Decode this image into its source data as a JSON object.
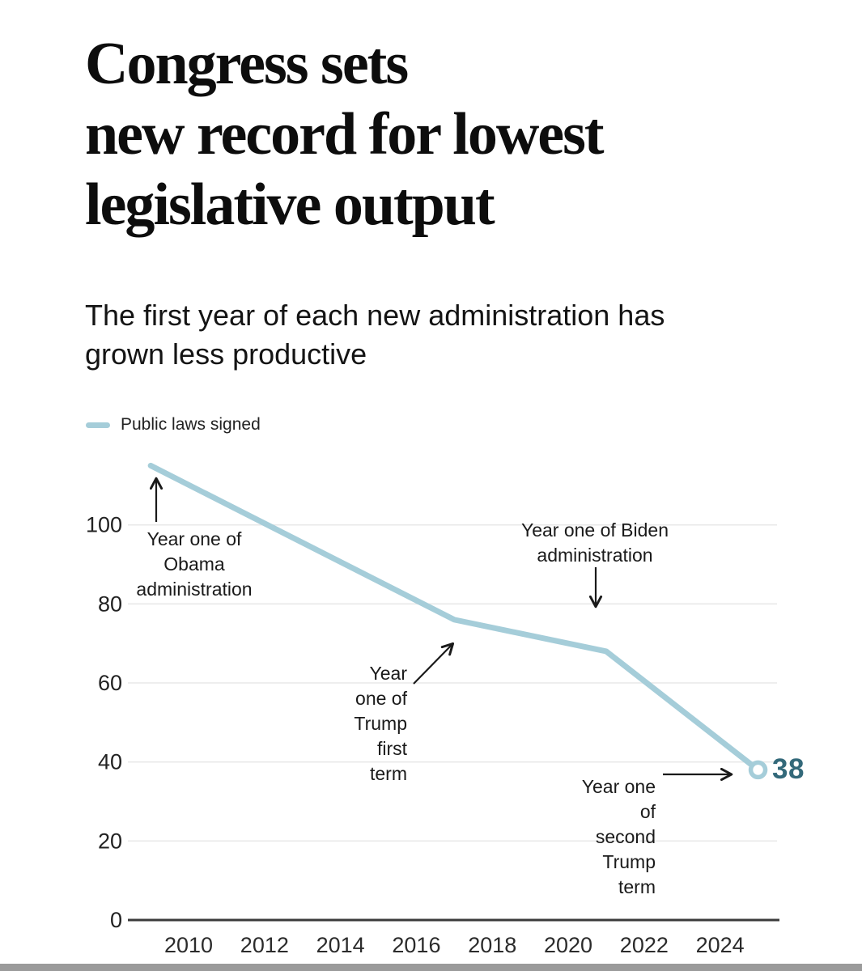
{
  "header": {
    "title": "Congress sets\nnew record for lowest\nlegislative output",
    "subtitle": "The first year of each new administration has grown less productive"
  },
  "legend": {
    "label": "Public laws signed",
    "swatch_color": "#a5cdd9"
  },
  "colors": {
    "line": "#a5cdd9",
    "end_label": "#33697a",
    "grid": "#e9e9e9",
    "zero_axis": "#3b3b3b",
    "annotation_text": "#1a1a1a",
    "bottom_bar": "#9b9b9b"
  },
  "chart_data": {
    "type": "line",
    "series": [
      {
        "name": "Public laws signed",
        "color": "#a5cdd9",
        "x": [
          2009,
          2017,
          2021,
          2025
        ],
        "values": [
          115,
          76,
          68,
          38
        ]
      }
    ],
    "x_ticks": [
      2010,
      2012,
      2014,
      2016,
      2018,
      2020,
      2022,
      2024
    ],
    "y_ticks": [
      0,
      20,
      40,
      60,
      80,
      100
    ],
    "xlim": [
      2008.4,
      2025.5
    ],
    "ylim": [
      0,
      120
    ],
    "grid": true,
    "legend_position": "top-left",
    "end_label": "38",
    "annotations": [
      {
        "id": "obama",
        "text": "Year one of\nObama\nadministration",
        "align": "center",
        "arrow": "up"
      },
      {
        "id": "trump1",
        "text": "Year\none of\nTrump\nfirst\nterm",
        "align": "right",
        "arrow": "up-right"
      },
      {
        "id": "biden",
        "text": "Year one of Biden\nadministration",
        "align": "center",
        "arrow": "down"
      },
      {
        "id": "trump2",
        "text": "Year one\nof\nsecond\nTrump\nterm",
        "align": "right",
        "arrow": "right"
      }
    ]
  }
}
